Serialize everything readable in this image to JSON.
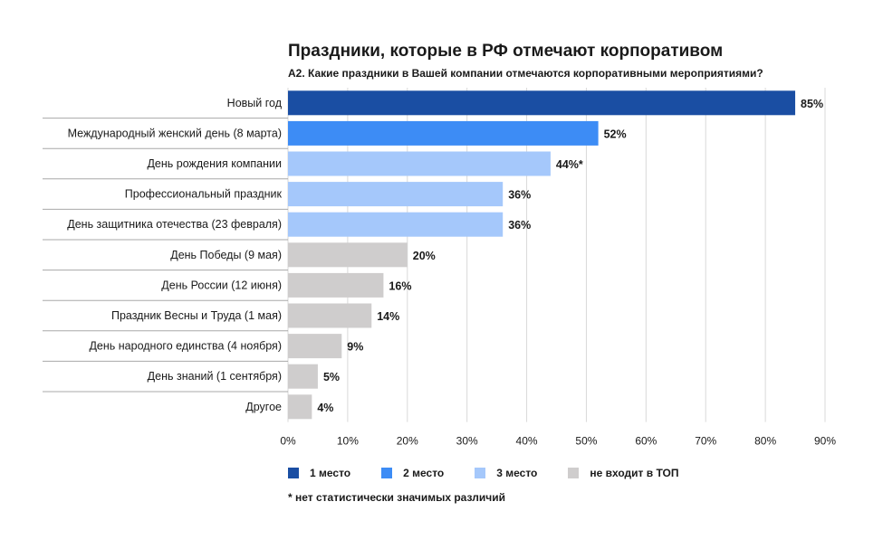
{
  "chart_data": {
    "type": "bar",
    "orientation": "horizontal",
    "title": "Праздники, которые в РФ отмечают корпоративом",
    "subtitle": "A2. Какие праздники в Вашей компании отмечаются корпоративными мероприятиями?",
    "categories": [
      "Новый год",
      "Международный женский день (8 марта)",
      "День рождения компании",
      "Профессиональный праздник",
      "День защитника отечества (23 февраля)",
      "День Победы (9 мая)",
      "День России (12 июня)",
      "Праздник Весны и Труда (1 мая)",
      "День народного единства (4 ноября)",
      "День знаний (1 сентября)",
      "Другое"
    ],
    "values": [
      85,
      52,
      44,
      36,
      36,
      20,
      16,
      14,
      9,
      5,
      4
    ],
    "value_labels": [
      "85%",
      "52%",
      "44%*",
      "36%",
      "36%",
      "20%",
      "16%",
      "14%",
      "9%",
      "5%",
      "4%"
    ],
    "groups": [
      "first",
      "second",
      "third",
      "third",
      "third",
      "none",
      "none",
      "none",
      "none",
      "none",
      "none"
    ],
    "xlim": [
      0,
      90
    ],
    "xticks": [
      0,
      10,
      20,
      30,
      40,
      50,
      60,
      70,
      80,
      90
    ],
    "xtick_labels": [
      "0%",
      "10%",
      "20%",
      "30%",
      "40%",
      "50%",
      "60%",
      "70%",
      "80%",
      "90%"
    ],
    "grid": true,
    "legend": [
      {
        "key": "first",
        "label": "1 место",
        "color": "#1a4ea3"
      },
      {
        "key": "second",
        "label": "2 место",
        "color": "#3d8cf5"
      },
      {
        "key": "third",
        "label": "3 место",
        "color": "#a5c8fb"
      },
      {
        "key": "none",
        "label": "не входит в ТОП",
        "color": "#cfcdcd"
      }
    ],
    "legend_position": "bottom-left",
    "note": "* нет статистически значимых различий"
  }
}
